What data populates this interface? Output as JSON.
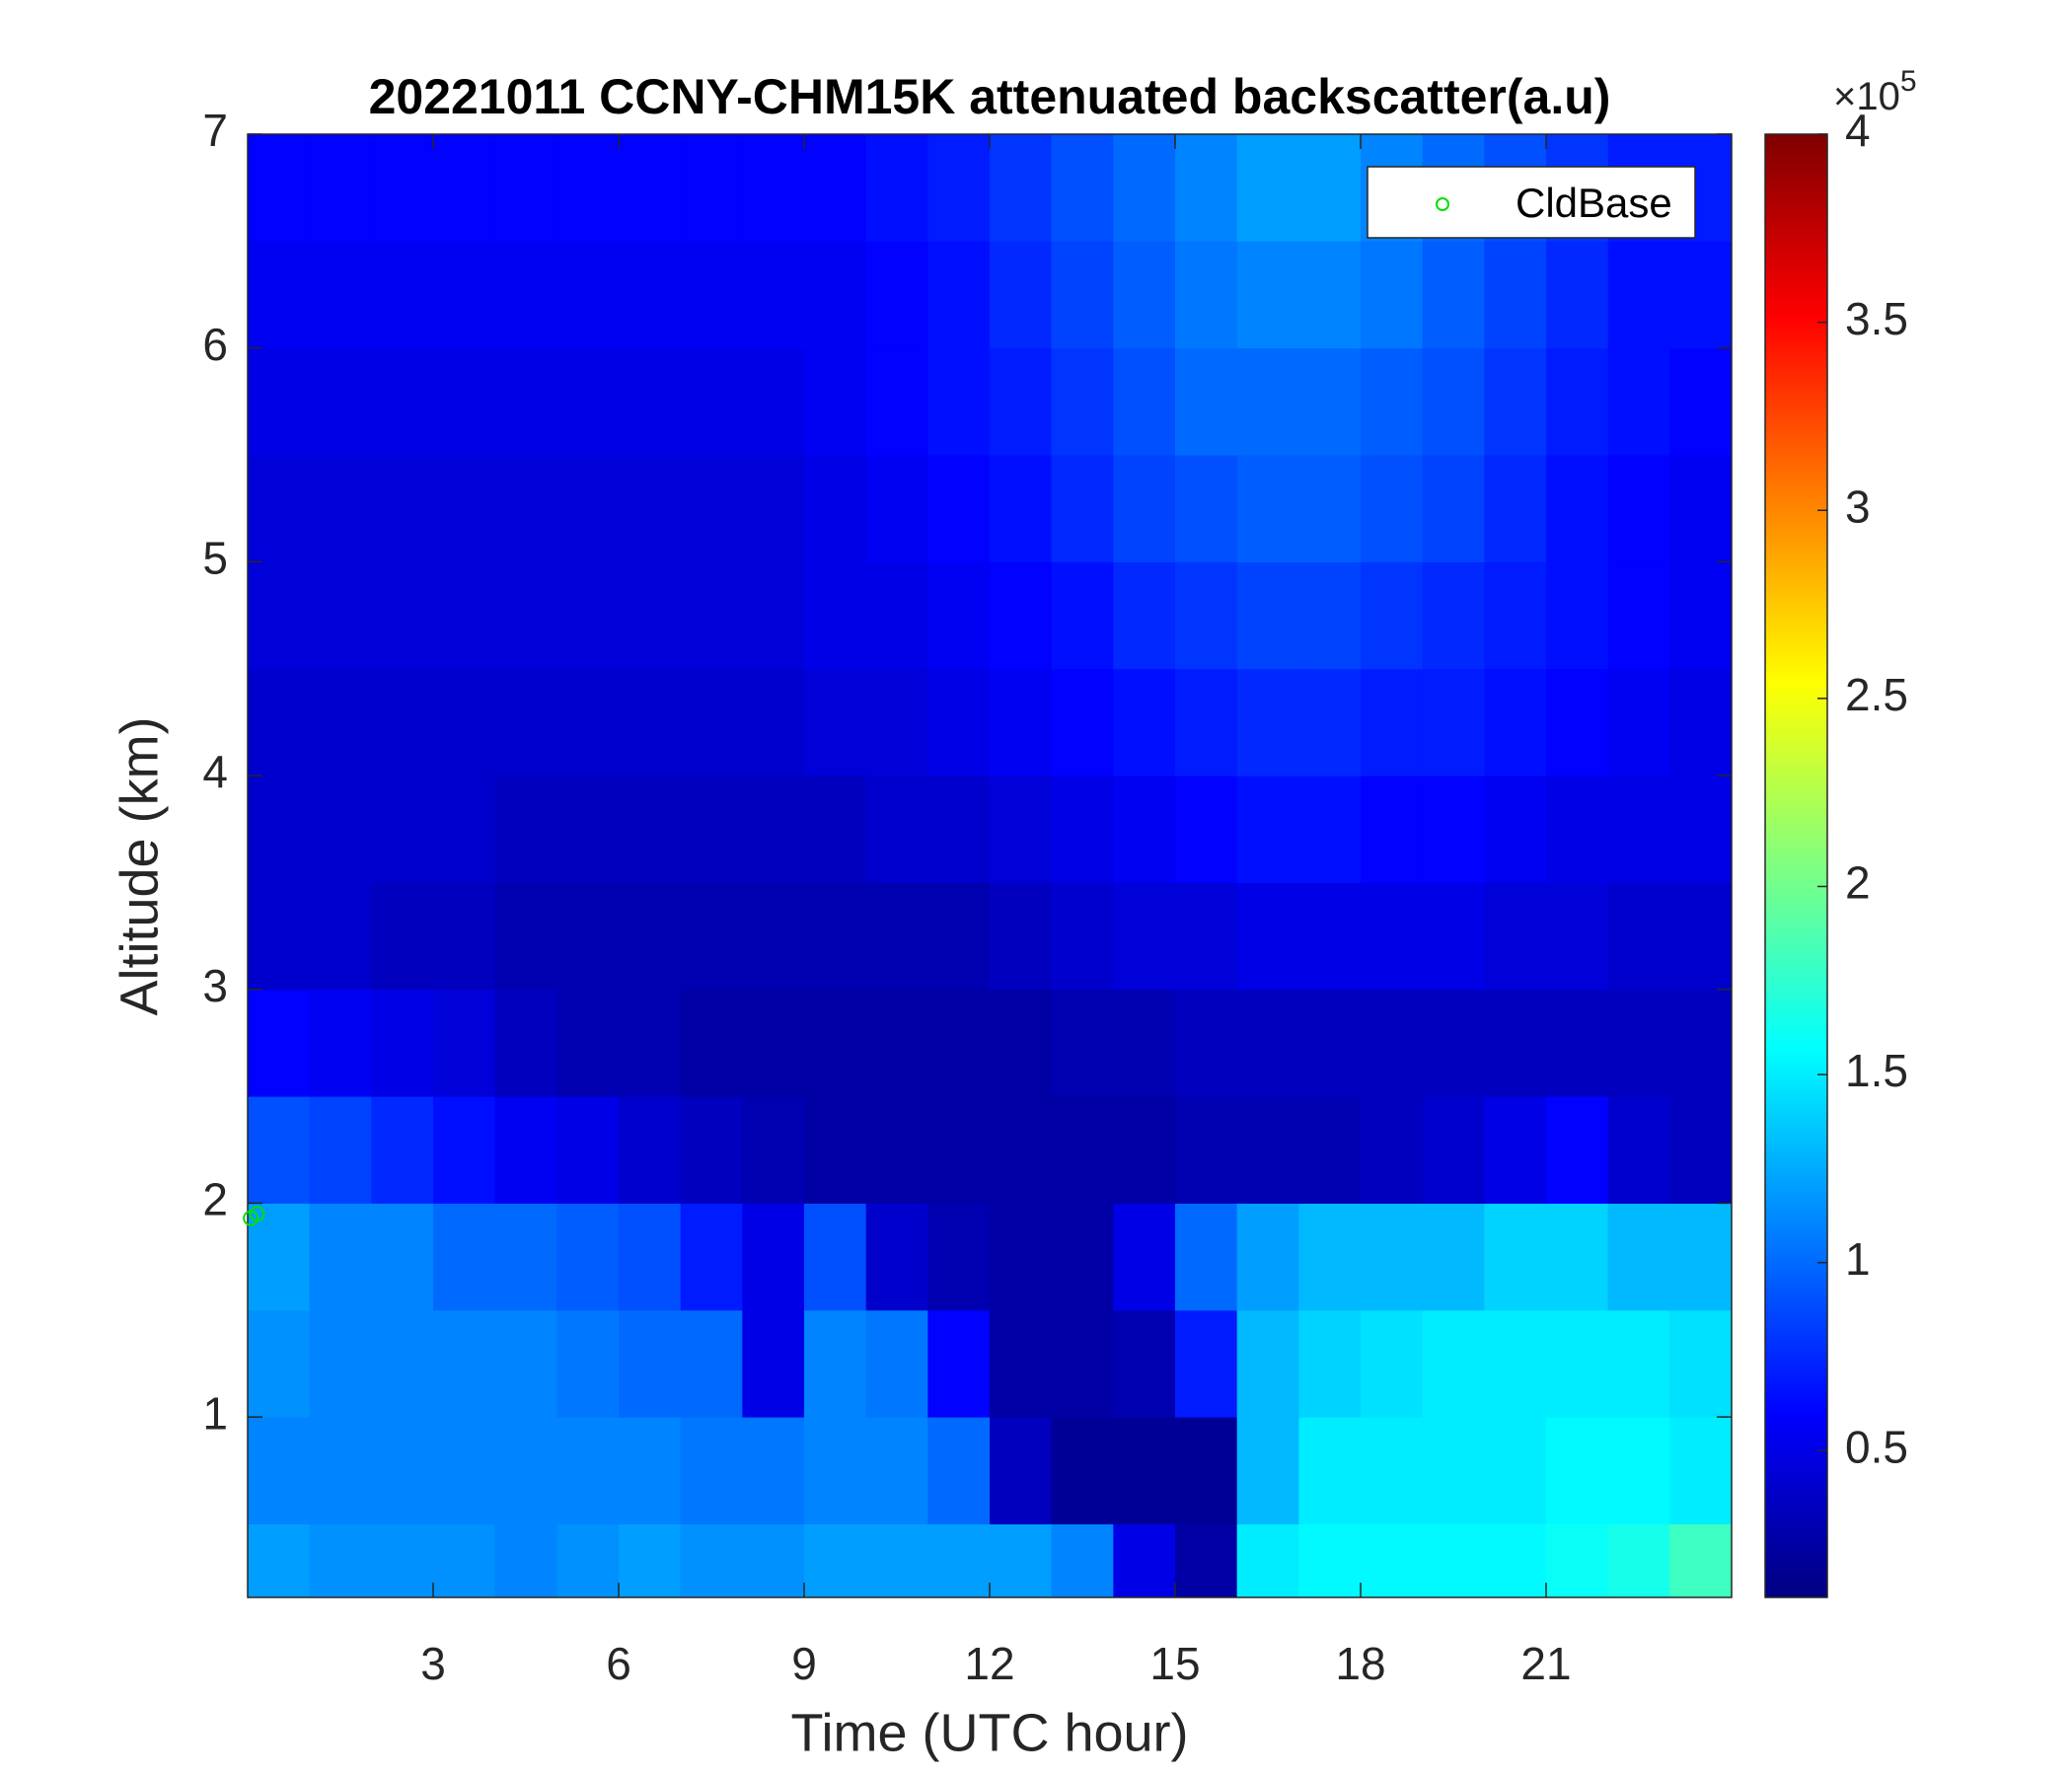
{
  "chart_data": {
    "type": "heatmap",
    "title": "20221011 CCNY-CHM15K attenuated backscatter(a.u)",
    "xlabel": "Time (UTC hour)",
    "ylabel": "Altitude (km)",
    "xlim": [
      0,
      24
    ],
    "ylim": [
      0.156,
      7
    ],
    "xticks": [
      3,
      6,
      9,
      12,
      15,
      18,
      21
    ],
    "yticks": [
      1,
      2,
      3,
      4,
      5,
      6,
      7
    ],
    "colormap": "jet",
    "clim": [
      0.11,
      4
    ],
    "cticks": [
      0.5,
      1,
      1.5,
      2,
      2.5,
      3,
      3.5,
      4
    ],
    "colorbar_label": {
      "base": "×10",
      "exponent": "5"
    },
    "x": [
      0.5,
      1.5,
      2.5,
      3.5,
      4.5,
      5.5,
      6.5,
      7.5,
      8.5,
      9.5,
      10.5,
      11.5,
      12.5,
      13.5,
      14.5,
      15.5,
      16.5,
      17.5,
      18.5,
      19.5,
      20.5,
      21.5,
      22.5,
      23.5
    ],
    "y": [
      0.25,
      0.75,
      1.25,
      1.75,
      2.25,
      2.75,
      3.25,
      3.75,
      4.25,
      4.75,
      5.25,
      5.75,
      6.25,
      6.75
    ],
    "z": [
      [
        1.2,
        1.15,
        1.15,
        1.15,
        1.1,
        1.15,
        1.2,
        1.15,
        1.15,
        1.2,
        1.2,
        1.2,
        1.2,
        1.1,
        0.5,
        0.25,
        1.5,
        1.55,
        1.55,
        1.55,
        1.55,
        1.6,
        1.65,
        1.8
      ],
      [
        1.1,
        1.1,
        1.1,
        1.1,
        1.1,
        1.1,
        1.1,
        1.05,
        1.05,
        1.1,
        1.1,
        1.0,
        0.35,
        0.2,
        0.2,
        0.2,
        1.3,
        1.5,
        1.5,
        1.5,
        1.5,
        1.55,
        1.55,
        1.5
      ],
      [
        1.15,
        1.1,
        1.1,
        1.1,
        1.1,
        1.05,
        1.0,
        1.0,
        0.5,
        1.1,
        1.05,
        0.6,
        0.25,
        0.25,
        0.3,
        0.7,
        1.3,
        1.4,
        1.45,
        1.5,
        1.5,
        1.5,
        1.5,
        1.45
      ],
      [
        1.2,
        1.1,
        1.1,
        1.0,
        1.0,
        0.95,
        0.9,
        0.7,
        0.5,
        0.9,
        0.4,
        0.3,
        0.25,
        0.25,
        0.5,
        1.0,
        1.2,
        1.3,
        1.3,
        1.3,
        1.4,
        1.4,
        1.3,
        1.3
      ],
      [
        0.9,
        0.85,
        0.75,
        0.65,
        0.55,
        0.5,
        0.4,
        0.35,
        0.3,
        0.25,
        0.25,
        0.25,
        0.25,
        0.25,
        0.25,
        0.3,
        0.3,
        0.3,
        0.35,
        0.4,
        0.5,
        0.6,
        0.4,
        0.35
      ],
      [
        0.6,
        0.55,
        0.5,
        0.45,
        0.35,
        0.3,
        0.3,
        0.25,
        0.25,
        0.25,
        0.25,
        0.25,
        0.25,
        0.3,
        0.3,
        0.35,
        0.35,
        0.35,
        0.35,
        0.35,
        0.35,
        0.35,
        0.35,
        0.35
      ],
      [
        0.4,
        0.4,
        0.35,
        0.35,
        0.3,
        0.3,
        0.3,
        0.3,
        0.3,
        0.3,
        0.3,
        0.3,
        0.35,
        0.4,
        0.45,
        0.45,
        0.5,
        0.5,
        0.5,
        0.5,
        0.45,
        0.45,
        0.4,
        0.4
      ],
      [
        0.4,
        0.4,
        0.4,
        0.4,
        0.35,
        0.35,
        0.35,
        0.35,
        0.35,
        0.35,
        0.4,
        0.4,
        0.45,
        0.5,
        0.55,
        0.6,
        0.65,
        0.65,
        0.6,
        0.6,
        0.55,
        0.5,
        0.5,
        0.5
      ],
      [
        0.4,
        0.4,
        0.4,
        0.4,
        0.4,
        0.4,
        0.4,
        0.4,
        0.4,
        0.45,
        0.45,
        0.5,
        0.55,
        0.6,
        0.65,
        0.7,
        0.75,
        0.75,
        0.7,
        0.7,
        0.65,
        0.6,
        0.55,
        0.5
      ],
      [
        0.45,
        0.45,
        0.45,
        0.45,
        0.45,
        0.45,
        0.45,
        0.45,
        0.45,
        0.5,
        0.5,
        0.55,
        0.6,
        0.65,
        0.75,
        0.8,
        0.85,
        0.85,
        0.8,
        0.75,
        0.7,
        0.65,
        0.6,
        0.55
      ],
      [
        0.45,
        0.45,
        0.45,
        0.45,
        0.45,
        0.45,
        0.45,
        0.45,
        0.45,
        0.5,
        0.55,
        0.6,
        0.65,
        0.75,
        0.85,
        0.9,
        0.95,
        0.95,
        0.9,
        0.85,
        0.75,
        0.65,
        0.6,
        0.55
      ],
      [
        0.5,
        0.5,
        0.5,
        0.5,
        0.5,
        0.5,
        0.5,
        0.5,
        0.5,
        0.55,
        0.6,
        0.65,
        0.7,
        0.8,
        0.9,
        1.0,
        1.0,
        1.0,
        0.95,
        0.9,
        0.8,
        0.7,
        0.65,
        0.6
      ],
      [
        0.55,
        0.55,
        0.55,
        0.55,
        0.55,
        0.55,
        0.55,
        0.55,
        0.55,
        0.55,
        0.6,
        0.65,
        0.75,
        0.85,
        0.95,
        1.05,
        1.1,
        1.1,
        1.05,
        0.95,
        0.85,
        0.75,
        0.65,
        0.65
      ],
      [
        0.6,
        0.6,
        0.6,
        0.6,
        0.6,
        0.6,
        0.6,
        0.6,
        0.6,
        0.6,
        0.65,
        0.7,
        0.8,
        0.9,
        1.0,
        1.1,
        1.2,
        1.2,
        1.1,
        1.0,
        0.9,
        0.8,
        0.7,
        0.7
      ]
    ],
    "series": [
      {
        "name": "CldBase",
        "color": "#00e000",
        "x": [
          0.05,
          0.15
        ],
        "values": [
          1.93,
          1.95
        ]
      }
    ],
    "legend": "upper right"
  }
}
